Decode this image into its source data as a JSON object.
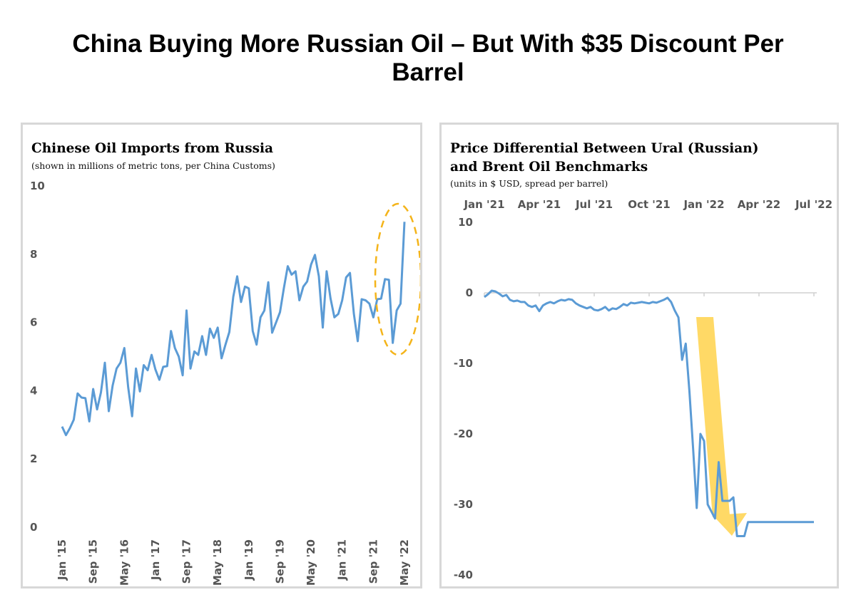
{
  "title": "China Buying More Russian Oil – But With $35 Discount Per Barrel",
  "chart_data": [
    {
      "type": "line",
      "title": "Chinese Oil Imports from Russia",
      "subtitle": "(shown in millions of metric tons, per China Customs)",
      "xlabel": "",
      "ylabel": "",
      "ylim": [
        0,
        10
      ],
      "yticks": [
        "0",
        "2",
        "4",
        "6",
        "8",
        "10"
      ],
      "xticks": [
        "Jan '15",
        "Sep '15",
        "May '16",
        "Jan '17",
        "Sep '17",
        "May '18",
        "Jan '19",
        "Sep '19",
        "May '20",
        "Jan '21",
        "Sep '21",
        "May '22"
      ],
      "x_start": "2015-01",
      "x_end": "2022-05",
      "annotation": "dashed orange ellipse around 2022 values",
      "annotation_color": "#f4b41a",
      "series": [
        {
          "color": "#5b9bd5",
          "values": [
            2.95,
            2.7,
            2.9,
            3.15,
            3.92,
            3.8,
            3.78,
            3.1,
            4.05,
            3.45,
            3.95,
            4.82,
            3.4,
            4.15,
            4.65,
            4.82,
            5.25,
            4.1,
            3.25,
            4.65,
            3.98,
            4.75,
            4.6,
            5.05,
            4.62,
            4.32,
            4.7,
            4.72,
            5.75,
            5.25,
            5.0,
            4.45,
            6.35,
            4.65,
            5.15,
            5.05,
            5.6,
            5.05,
            5.82,
            5.55,
            5.85,
            4.95,
            5.35,
            5.72,
            6.75,
            7.35,
            6.6,
            7.05,
            7.0,
            5.75,
            5.35,
            6.15,
            6.35,
            7.18,
            5.7,
            6.0,
            6.3,
            7.0,
            7.65,
            7.4,
            7.5,
            6.65,
            7.05,
            7.2,
            7.7,
            7.98,
            7.35,
            5.85,
            7.5,
            6.7,
            6.15,
            6.25,
            6.65,
            7.32,
            7.45,
            6.25,
            5.45,
            6.68,
            6.65,
            6.55,
            6.15,
            6.68,
            6.7,
            7.27,
            7.25,
            5.4,
            6.35,
            6.55,
            8.95
          ]
        }
      ]
    },
    {
      "type": "line",
      "title": "Price Differential Between Ural (Russian) and Brent Oil Benchmarks",
      "title_lines": [
        "Price Differential Between Ural (Russian)",
        "and Brent Oil Benchmarks"
      ],
      "subtitle": "(units in $ USD, spread per barrel)",
      "xlabel": "",
      "ylabel": "",
      "ylim": [
        -40,
        10
      ],
      "yticks": [
        "10",
        "0",
        "-10",
        "-20",
        "-30",
        "-40"
      ],
      "xticks": [
        "Jan '21",
        "Apr '21",
        "Jul '21",
        "Oct '21",
        "Jan '22",
        "Apr '22",
        "Jul '22"
      ],
      "x_start": "2021-01",
      "x_end": "2022-07",
      "annotation": "yellow downward arrow",
      "annotation_color": "#ffd966",
      "series": [
        {
          "color": "#5b9bd5",
          "x": [
            0,
            0.2,
            0.4,
            0.6,
            0.8,
            1.0,
            1.2,
            1.4,
            1.6,
            1.8,
            2.0,
            2.2,
            2.4,
            2.6,
            2.8,
            3.0,
            3.2,
            3.4,
            3.6,
            3.8,
            4.0,
            4.2,
            4.4,
            4.6,
            4.8,
            5.0,
            5.2,
            5.4,
            5.6,
            5.8,
            6.0,
            6.2,
            6.4,
            6.6,
            6.8,
            7.0,
            7.2,
            7.4,
            7.6,
            7.8,
            8.0,
            8.2,
            8.4,
            8.6,
            8.8,
            9.0,
            9.2,
            9.4,
            9.6,
            9.8,
            10.0,
            10.2,
            10.4,
            10.6,
            10.8,
            11.0,
            11.2,
            11.4,
            11.6,
            11.8,
            12.0,
            12.2,
            12.4,
            12.6,
            12.8,
            13.0,
            13.2,
            13.4,
            13.6,
            13.8,
            14.0,
            14.2,
            14.4,
            14.6,
            14.8,
            15.0,
            15.2,
            15.4,
            15.6,
            15.8,
            16.0,
            16.2,
            16.4,
            16.6,
            16.8,
            17.0,
            17.2,
            17.4,
            17.6,
            17.8,
            18.0
          ],
          "values": [
            -0.6,
            -0.2,
            0.3,
            0.2,
            -0.1,
            -0.5,
            -0.3,
            -1.0,
            -1.2,
            -1.1,
            -1.3,
            -1.3,
            -1.8,
            -2.0,
            -1.8,
            -2.6,
            -1.8,
            -1.5,
            -1.3,
            -1.5,
            -1.2,
            -1.0,
            -1.1,
            -0.9,
            -1.0,
            -1.5,
            -1.8,
            -2.0,
            -2.2,
            -2.0,
            -2.4,
            -2.5,
            -2.3,
            -2.0,
            -2.5,
            -2.2,
            -2.3,
            -2.0,
            -1.6,
            -1.8,
            -1.4,
            -1.5,
            -1.4,
            -1.3,
            -1.4,
            -1.5,
            -1.3,
            -1.4,
            -1.2,
            -1.0,
            -0.7,
            -1.3,
            -2.5,
            -3.5,
            -9.5,
            -7.2,
            -14,
            -22,
            -30.5,
            -20,
            -21,
            -30,
            -31,
            -32,
            -24,
            -29.5,
            -29.5,
            -29.5,
            -29,
            -34.5,
            -34.5,
            -34.5,
            -32.5,
            -32.5,
            -32.5,
            -32.5,
            -32.5,
            -32.5,
            -32.5,
            -32.5,
            -32.5,
            -32.5,
            -32.5,
            -32.5,
            -32.5,
            -32.5,
            -32.5,
            -32.5,
            -32.5,
            -32.5,
            -32.5
          ]
        }
      ]
    }
  ]
}
